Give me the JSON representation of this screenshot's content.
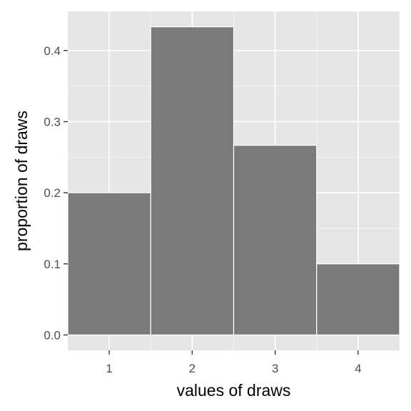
{
  "chart_data": {
    "type": "bar",
    "categories": [
      "1",
      "2",
      "3",
      "4"
    ],
    "values": [
      0.2,
      0.4333,
      0.2667,
      0.1
    ],
    "xlabel": "values of draws",
    "ylabel": "proportion of draws",
    "xlim": [
      0.5,
      4.5
    ],
    "ylim": [
      -0.02167,
      0.455
    ],
    "yticks": [
      0.0,
      0.1,
      0.2,
      0.3,
      0.4
    ],
    "ytick_labels": [
      "0.0",
      "0.1",
      "0.2",
      "0.3",
      "0.4"
    ],
    "grid": true,
    "colors": {
      "panel_background": "#e5e5e5",
      "grid_major": "#ffffff",
      "bar_fill": "#7a7a7a",
      "bar_outline": "#ffffff",
      "tick_text": "#4d4d4d",
      "tick_mark": "#333333"
    }
  }
}
